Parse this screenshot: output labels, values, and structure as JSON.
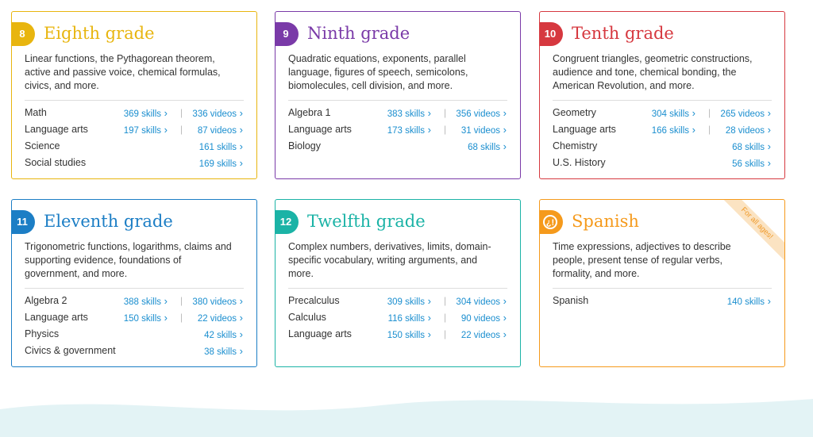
{
  "cards": [
    {
      "badge": "8",
      "title": "Eighth grade",
      "description": [
        "Linear functions, the Pythagorean theorem,",
        "active and passive voice, chemical formulas,",
        "civics, and more."
      ],
      "rows": [
        {
          "subject": "Math",
          "skills": "369 skills",
          "videos": "336 videos"
        },
        {
          "subject": "Language arts",
          "skills": "197 skills",
          "videos": "87 videos"
        },
        {
          "subject": "Science",
          "skills": "161 skills"
        },
        {
          "subject": "Social studies",
          "skills": "169 skills"
        }
      ]
    },
    {
      "badge": "9",
      "title": "Ninth grade",
      "description": [
        "Quadratic equations, exponents, parallel",
        "language, figures of speech, semicolons,",
        "biomolecules, cell division, and more."
      ],
      "rows": [
        {
          "subject": "Algebra 1",
          "skills": "383 skills",
          "videos": "356 videos"
        },
        {
          "subject": "Language arts",
          "skills": "173 skills",
          "videos": "31 videos"
        },
        {
          "subject": "Biology",
          "skills": "68 skills"
        }
      ]
    },
    {
      "badge": "10",
      "title": "Tenth grade",
      "description": [
        "Congruent triangles, geometric constructions,",
        "audience and tone, chemical bonding, the",
        "American Revolution, and more."
      ],
      "rows": [
        {
          "subject": "Geometry",
          "skills": "304 skills",
          "videos": "265 videos"
        },
        {
          "subject": "Language arts",
          "skills": "166 skills",
          "videos": "28 videos"
        },
        {
          "subject": "Chemistry",
          "skills": "68 skills"
        },
        {
          "subject": "U.S. History",
          "skills": "56 skills"
        }
      ]
    },
    {
      "badge": "11",
      "title": "Eleventh grade",
      "description": [
        "Trigonometric functions, logarithms, claims and",
        "supporting evidence, foundations of",
        "government, and more."
      ],
      "rows": [
        {
          "subject": "Algebra 2",
          "skills": "388 skills",
          "videos": "380 videos"
        },
        {
          "subject": "Language arts",
          "skills": "150 skills",
          "videos": "22 videos"
        },
        {
          "subject": "Physics",
          "skills": "42 skills"
        },
        {
          "subject": "Civics & government",
          "skills": "38 skills"
        }
      ]
    },
    {
      "badge": "12",
      "title": "Twelfth grade",
      "description": [
        "Complex numbers, derivatives, limits, domain-",
        "specific vocabulary, writing arguments, and",
        "more."
      ],
      "rows": [
        {
          "subject": "Precalculus",
          "skills": "309 skills",
          "videos": "304 videos"
        },
        {
          "subject": "Calculus",
          "skills": "116 skills",
          "videos": "90 videos"
        },
        {
          "subject": "Language arts",
          "skills": "150 skills",
          "videos": "22 videos"
        }
      ]
    },
    {
      "title": "Spanish",
      "ribbon": "For all ages!",
      "description": [
        "Time expressions, adjectives to describe",
        "people, present tense of regular verbs,",
        "formality, and more."
      ],
      "rows": [
        {
          "subject": "Spanish",
          "skills": "140 skills"
        }
      ]
    }
  ]
}
